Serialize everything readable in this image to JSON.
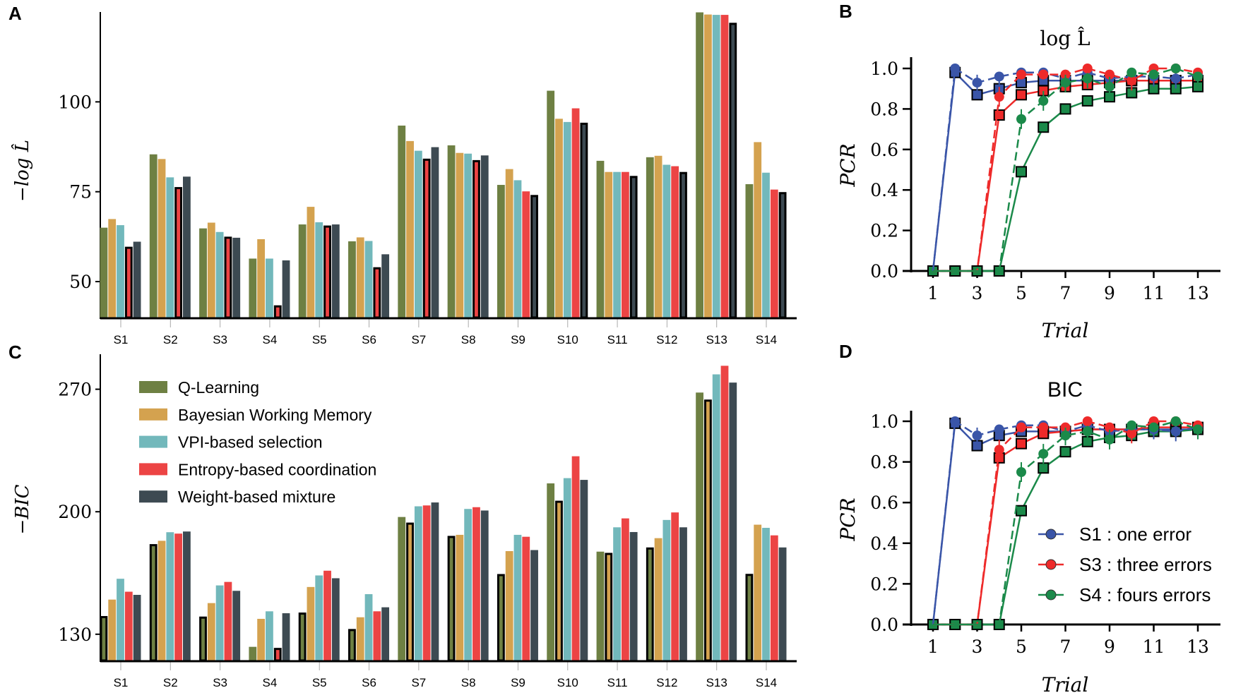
{
  "model_colors": [
    "#6e8043",
    "#d4a24f",
    "#72b8bb",
    "#ec4444",
    "#3d4a52"
  ],
  "subject_colors": {
    "S1": "#3a55a8",
    "S3": "#ee2a2a",
    "S4": "#1b8a4a"
  },
  "chart_data": [
    {
      "panel": "A",
      "type": "bar",
      "ylabel": "−log L̂",
      "categories": [
        "S1",
        "S2",
        "S3",
        "S4",
        "S5",
        "S6",
        "S7",
        "S8",
        "S9",
        "S10",
        "S11",
        "S12",
        "S13",
        "S14"
      ],
      "yticks": [
        50,
        75,
        100
      ],
      "ylim": [
        40,
        125
      ],
      "series": [
        {
          "name": "Q-Learning",
          "values": [
            65.0,
            85.4,
            64.8,
            56.4,
            65.9,
            61.2,
            93.4,
            87.9,
            76.9,
            103.1,
            83.6,
            84.6,
            124.9,
            77.1
          ]
        },
        {
          "name": "Bayesian Working Memory",
          "values": [
            67.4,
            84.1,
            66.4,
            61.8,
            70.8,
            62.3,
            89.1,
            85.8,
            81.3,
            95.3,
            80.5,
            85.0,
            124.3,
            88.8
          ]
        },
        {
          "name": "VPI-based selection",
          "values": [
            65.7,
            79.0,
            63.8,
            56.4,
            66.5,
            61.3,
            86.4,
            85.6,
            78.2,
            94.4,
            80.5,
            82.5,
            124.2,
            80.3
          ]
        },
        {
          "name": "Entropy-based coordination",
          "values": [
            59.7,
            76.3,
            62.5,
            43.4,
            65.6,
            54.0,
            84.2,
            83.8,
            75.1,
            98.2,
            80.5,
            82.1,
            124.2,
            75.6
          ]
        },
        {
          "name": "Weight-based mixture",
          "values": [
            61.1,
            79.2,
            62.2,
            55.9,
            65.9,
            57.6,
            87.4,
            85.1,
            74.1,
            94.2,
            79.4,
            80.5,
            122.0,
            74.9
          ]
        }
      ],
      "highlighted_model_per_subject": [
        3,
        3,
        3,
        3,
        3,
        3,
        3,
        3,
        4,
        4,
        4,
        4,
        4,
        4
      ]
    },
    {
      "panel": "C",
      "type": "bar",
      "ylabel": "−BIC",
      "categories": [
        "S1",
        "S2",
        "S3",
        "S4",
        "S5",
        "S6",
        "S7",
        "S8",
        "S9",
        "S10",
        "S11",
        "S12",
        "S13",
        "S14"
      ],
      "yticks": [
        130,
        200,
        270
      ],
      "ylim": [
        115,
        290
      ],
      "legend": {
        "position": "top-left",
        "entries": [
          "Q-Learning",
          "Bayesian Working Memory",
          "VPI-based selection",
          "Entropy-based coordination",
          "Weight-based mixture"
        ]
      },
      "series": [
        {
          "name": "Q-Learning",
          "values": [
            140.4,
            181.5,
            140.1,
            122.8,
            142.4,
            133.0,
            197.0,
            186.2,
            164.4,
            216.2,
            177.2,
            179.6,
            268.1,
            164.5
          ]
        },
        {
          "name": "Bayesian Working Memory",
          "values": [
            149.8,
            183.4,
            147.8,
            138.8,
            157.0,
            139.7,
            193.8,
            186.8,
            177.5,
            206.3,
            176.5,
            184.9,
            264.1,
            192.6
          ]
        },
        {
          "name": "VPI-based selection",
          "values": [
            161.7,
            188.3,
            157.9,
            143.1,
            163.6,
            152.9,
            203.1,
            201.6,
            186.8,
            219.2,
            191.1,
            195.3,
            278.5,
            190.8
          ]
        },
        {
          "name": "Entropy-based coordination",
          "values": [
            154.3,
            187.5,
            159.9,
            122.2,
            166.3,
            143.1,
            203.6,
            202.6,
            185.7,
            231.7,
            196.2,
            199.6,
            283.4,
            186.5
          ]
        },
        {
          "name": "Weight-based mixture",
          "values": [
            152.5,
            188.7,
            154.8,
            142.0,
            162.0,
            145.4,
            205.3,
            200.7,
            178.1,
            218.2,
            188.4,
            191.1,
            273.8,
            179.6
          ]
        }
      ],
      "highlighted_model_per_subject": [
        0,
        0,
        0,
        3,
        0,
        0,
        1,
        0,
        0,
        1,
        1,
        0,
        1,
        0
      ]
    },
    {
      "panel": "B",
      "type": "line",
      "title": "log L̂",
      "xlabel": "Trial",
      "ylabel": "PCR",
      "xticks": [
        1,
        3,
        5,
        7,
        9,
        11,
        13
      ],
      "yticks": [
        "0.0",
        "0.2",
        "0.4",
        "0.6",
        "0.8",
        "1.0"
      ],
      "xlim": [
        0,
        14
      ],
      "ylim": [
        0,
        1.0
      ],
      "x": [
        1,
        2,
        3,
        4,
        5,
        6,
        7,
        8,
        9,
        10,
        11,
        12,
        13
      ],
      "series": [
        {
          "subject": "S1",
          "style": "data",
          "values": [
            0,
            1.0,
            0.93,
            0.96,
            0.98,
            0.98,
            0.95,
            0.98,
            0.95,
            0.96,
            0.96,
            0.95,
            0.97
          ]
        },
        {
          "subject": "S3",
          "style": "data",
          "values": [
            0,
            0,
            0,
            0.86,
            0.97,
            0.97,
            0.97,
            1.0,
            0.97,
            0.94,
            1.0,
            1.0,
            0.98
          ]
        },
        {
          "subject": "S4",
          "style": "data",
          "values": [
            0,
            0,
            0,
            0,
            0.75,
            0.84,
            0.93,
            0.95,
            0.91,
            0.98,
            0.97,
            1.0,
            0.96
          ]
        },
        {
          "subject": "S1",
          "style": "model",
          "values": [
            0,
            0.98,
            0.87,
            0.9,
            0.93,
            0.94,
            0.94,
            0.94,
            0.94,
            0.94,
            0.94,
            0.94,
            0.94
          ]
        },
        {
          "subject": "S3",
          "style": "model",
          "values": [
            0,
            0,
            0,
            0.77,
            0.87,
            0.89,
            0.91,
            0.92,
            0.93,
            0.94,
            0.94,
            0.94,
            0.94
          ]
        },
        {
          "subject": "S4",
          "style": "model",
          "values": [
            0,
            0,
            0,
            0,
            0.49,
            0.71,
            0.8,
            0.84,
            0.86,
            0.88,
            0.9,
            0.9,
            0.91
          ]
        }
      ]
    },
    {
      "panel": "D",
      "type": "line",
      "title": "BIC",
      "xlabel": "Trial",
      "ylabel": "PCR",
      "xticks": [
        1,
        3,
        5,
        7,
        9,
        11,
        13
      ],
      "yticks": [
        "0.0",
        "0.2",
        "0.4",
        "0.6",
        "0.8",
        "1.0"
      ],
      "xlim": [
        0,
        14
      ],
      "ylim": [
        0,
        1.0
      ],
      "x": [
        1,
        2,
        3,
        4,
        5,
        6,
        7,
        8,
        9,
        10,
        11,
        12,
        13
      ],
      "legend": {
        "position": "bottom-right",
        "entries": [
          "S1 :  one error",
          "S3 :  three errors",
          "S4 :  fours errors"
        ]
      },
      "series": [
        {
          "subject": "S1",
          "style": "data",
          "values": [
            0,
            1.0,
            0.93,
            0.96,
            0.98,
            0.98,
            0.95,
            0.98,
            0.95,
            0.96,
            0.96,
            0.95,
            0.97
          ]
        },
        {
          "subject": "S3",
          "style": "data",
          "values": [
            0,
            0,
            0,
            0.86,
            0.97,
            0.97,
            0.97,
            1.0,
            0.97,
            0.94,
            1.0,
            1.0,
            0.98
          ]
        },
        {
          "subject": "S4",
          "style": "data",
          "values": [
            0,
            0,
            0,
            0,
            0.75,
            0.84,
            0.93,
            0.95,
            0.91,
            0.98,
            0.97,
            1.0,
            0.96
          ]
        },
        {
          "subject": "S1",
          "style": "model",
          "values": [
            0,
            0.99,
            0.88,
            0.93,
            0.95,
            0.95,
            0.95,
            0.96,
            0.96,
            0.96,
            0.96,
            0.96,
            0.96
          ]
        },
        {
          "subject": "S3",
          "style": "model",
          "values": [
            0,
            0,
            0,
            0.82,
            0.89,
            0.94,
            0.95,
            0.96,
            0.96,
            0.96,
            0.97,
            0.97,
            0.97
          ]
        },
        {
          "subject": "S4",
          "style": "model",
          "values": [
            0,
            0,
            0,
            0,
            0.56,
            0.77,
            0.85,
            0.9,
            0.92,
            0.93,
            0.95,
            0.95,
            0.96
          ]
        }
      ]
    }
  ]
}
